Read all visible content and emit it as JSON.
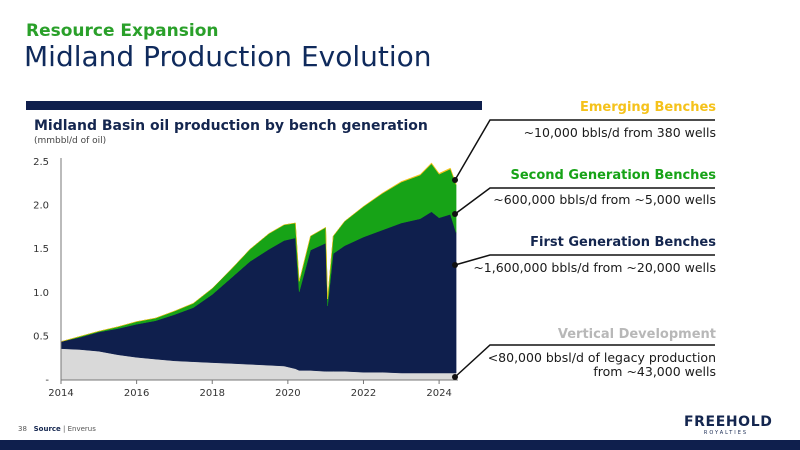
{
  "header": {
    "kicker": "Resource Expansion",
    "title": "Midland Production Evolution"
  },
  "chart_title": "Midland Basin oil production by bench generation",
  "chart_subtitle": "(mmbbl/d of oil)",
  "legend": {
    "emerging": {
      "label": "Emerging Benches",
      "text": "~10,000 bbls/d from 380 wells",
      "color": "#f5c21b"
    },
    "second": {
      "label": "Second Generation Benches",
      "text": "~600,000 bbls/d from ~5,000 wells",
      "color": "#17a317"
    },
    "first": {
      "label": "First Generation Benches",
      "text": "~1,600,000 bbls/d from ~20,000 wells",
      "color": "#0f1f4d"
    },
    "vertical": {
      "label": "Vertical Development",
      "text_line1": "<80,000 bbsl/d of legacy production",
      "text_line2": "from ~43,000 wells",
      "color": "#bdbdbd"
    }
  },
  "footer": {
    "page": "38",
    "source_label": "Source",
    "source_value": "| Enverus"
  },
  "logo": {
    "name": "FREEHOLD",
    "sub": "ROYALTIES"
  },
  "chart_data": {
    "type": "area",
    "stacked": true,
    "xlim": [
      2014,
      2024.5
    ],
    "ylim": [
      0,
      2.5
    ],
    "x_ticks": [
      "2014",
      "2016",
      "2018",
      "2020",
      "2022",
      "2024"
    ],
    "x_tick_values": [
      2014,
      2016,
      2018,
      2020,
      2022,
      2024
    ],
    "y_ticks": [
      "-",
      "0.5",
      "1.0",
      "1.5",
      "2.0",
      "2.5"
    ],
    "y_tick_values": [
      0,
      0.5,
      1.0,
      1.5,
      2.0,
      2.5
    ],
    "x": [
      2014,
      2014.5,
      2015,
      2015.5,
      2016,
      2016.5,
      2017,
      2017.5,
      2018,
      2018.5,
      2019,
      2019.5,
      2019.9,
      2020.2,
      2020.3,
      2020.6,
      2021,
      2021.05,
      2021.2,
      2021.5,
      2022,
      2022.5,
      2023,
      2023.5,
      2023.8,
      2024,
      2024.3,
      2024.45
    ],
    "series": [
      {
        "key": "vertical",
        "color": "#d9d9d9",
        "values": [
          0.36,
          0.35,
          0.33,
          0.29,
          0.26,
          0.24,
          0.22,
          0.21,
          0.2,
          0.19,
          0.18,
          0.17,
          0.16,
          0.13,
          0.11,
          0.11,
          0.1,
          0.1,
          0.1,
          0.1,
          0.09,
          0.09,
          0.08,
          0.08,
          0.08,
          0.08,
          0.08,
          0.08
        ]
      },
      {
        "key": "first",
        "color": "#0f1f4d",
        "values": [
          0.08,
          0.14,
          0.22,
          0.3,
          0.38,
          0.44,
          0.53,
          0.62,
          0.78,
          0.98,
          1.18,
          1.33,
          1.44,
          1.5,
          0.9,
          1.38,
          1.47,
          0.75,
          1.35,
          1.44,
          1.55,
          1.63,
          1.72,
          1.77,
          1.85,
          1.78,
          1.82,
          1.61
        ]
      },
      {
        "key": "second",
        "color": "#17a317",
        "values": [
          0.0,
          0.01,
          0.01,
          0.02,
          0.03,
          0.03,
          0.04,
          0.05,
          0.07,
          0.1,
          0.14,
          0.18,
          0.18,
          0.17,
          0.12,
          0.16,
          0.18,
          0.08,
          0.2,
          0.28,
          0.35,
          0.42,
          0.47,
          0.5,
          0.55,
          0.5,
          0.52,
          0.55
        ]
      },
      {
        "key": "emerging",
        "color": "#f5c21b",
        "values": [
          0,
          0,
          0,
          0,
          0,
          0,
          0,
          0,
          0,
          0,
          0,
          0,
          0,
          0,
          0,
          0,
          0,
          0,
          0,
          0,
          0.002,
          0.004,
          0.006,
          0.008,
          0.01,
          0.01,
          0.01,
          0.01
        ]
      }
    ]
  }
}
